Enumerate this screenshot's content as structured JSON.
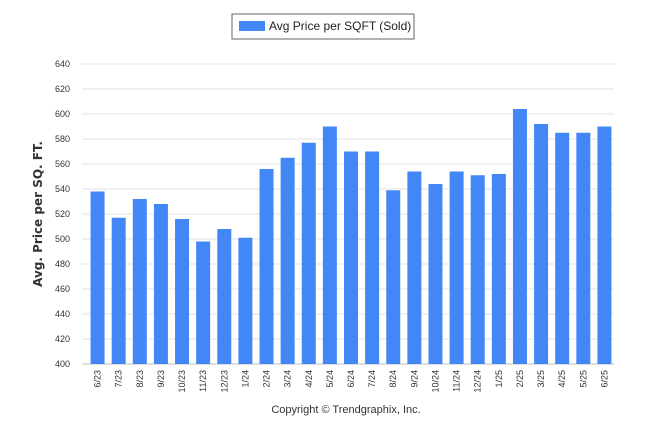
{
  "chart_data": {
    "type": "bar",
    "title": "",
    "xlabel": "",
    "ylabel": "Avg. Price per SQ. FT.",
    "ylim": [
      400,
      640
    ],
    "yticks": [
      400,
      420,
      440,
      460,
      480,
      500,
      520,
      540,
      560,
      580,
      600,
      620,
      640
    ],
    "grid": true,
    "legend_position": "top-center",
    "categories": [
      "6/23",
      "7/23",
      "8/23",
      "9/23",
      "10/23",
      "11/23",
      "12/23",
      "1/24",
      "2/24",
      "3/24",
      "4/24",
      "5/24",
      "6/24",
      "7/24",
      "8/24",
      "9/24",
      "10/24",
      "11/24",
      "12/24",
      "1/25",
      "2/25",
      "3/25",
      "4/25",
      "5/25",
      "6/25"
    ],
    "series": [
      {
        "name": "Avg Price per SQFT (Sold)",
        "color": "#4287f5",
        "values": [
          538,
          517,
          532,
          528,
          516,
          498,
          508,
          501,
          556,
          565,
          577,
          590,
          570,
          570,
          539,
          554,
          544,
          554,
          551,
          552,
          604,
          592,
          585,
          585,
          590
        ]
      }
    ]
  },
  "footer": {
    "copyright": "Copyright © Trendgraphix, Inc."
  }
}
